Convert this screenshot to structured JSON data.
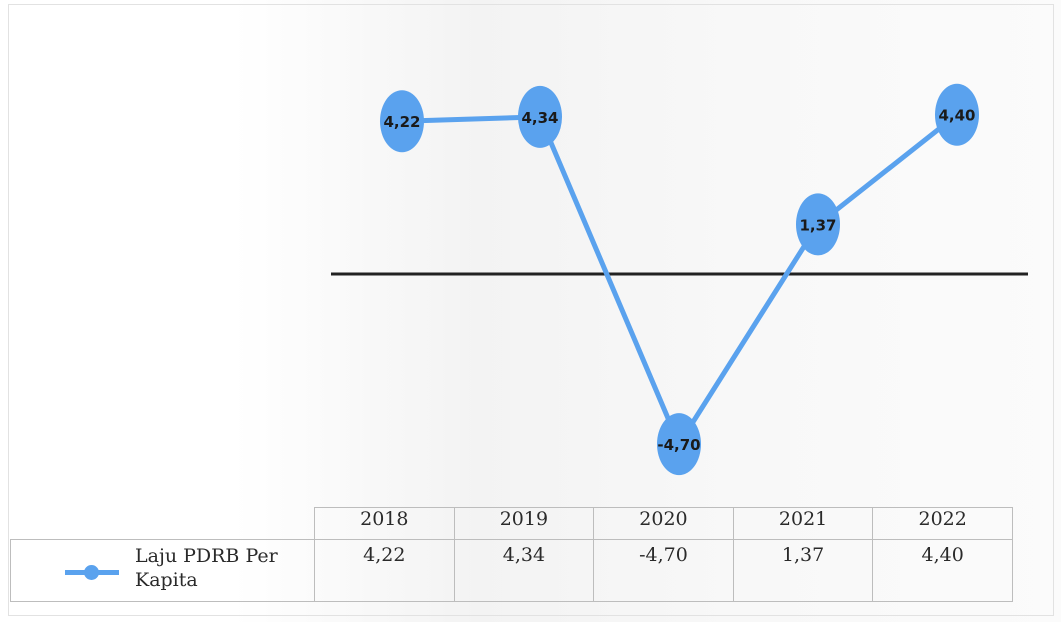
{
  "chart_data": {
    "type": "line",
    "title": "",
    "xlabel": "",
    "ylabel": "",
    "categories": [
      "2018",
      "2019",
      "2020",
      "2021",
      "2022"
    ],
    "ylim": [
      -5.5,
      5.5
    ],
    "grid": false,
    "zero_line": true,
    "legend_placement": "bottom-left (data table)",
    "series": [
      {
        "name": "Laju PDRB Per Kapita",
        "values": [
          4.22,
          4.34,
          -4.7,
          1.37,
          4.4
        ],
        "labels": [
          "4,22",
          "4,34",
          "-4,70",
          "1,37",
          "4,40"
        ],
        "color": "#5aa2ee"
      }
    ]
  },
  "table": {
    "headers": [
      "2018",
      "2019",
      "2020",
      "2021",
      "2022"
    ],
    "series_label": "Laju PDRB Per Kapita",
    "values": [
      "4,22",
      "4,34",
      "-4,70",
      "1,37",
      "4,40"
    ]
  }
}
